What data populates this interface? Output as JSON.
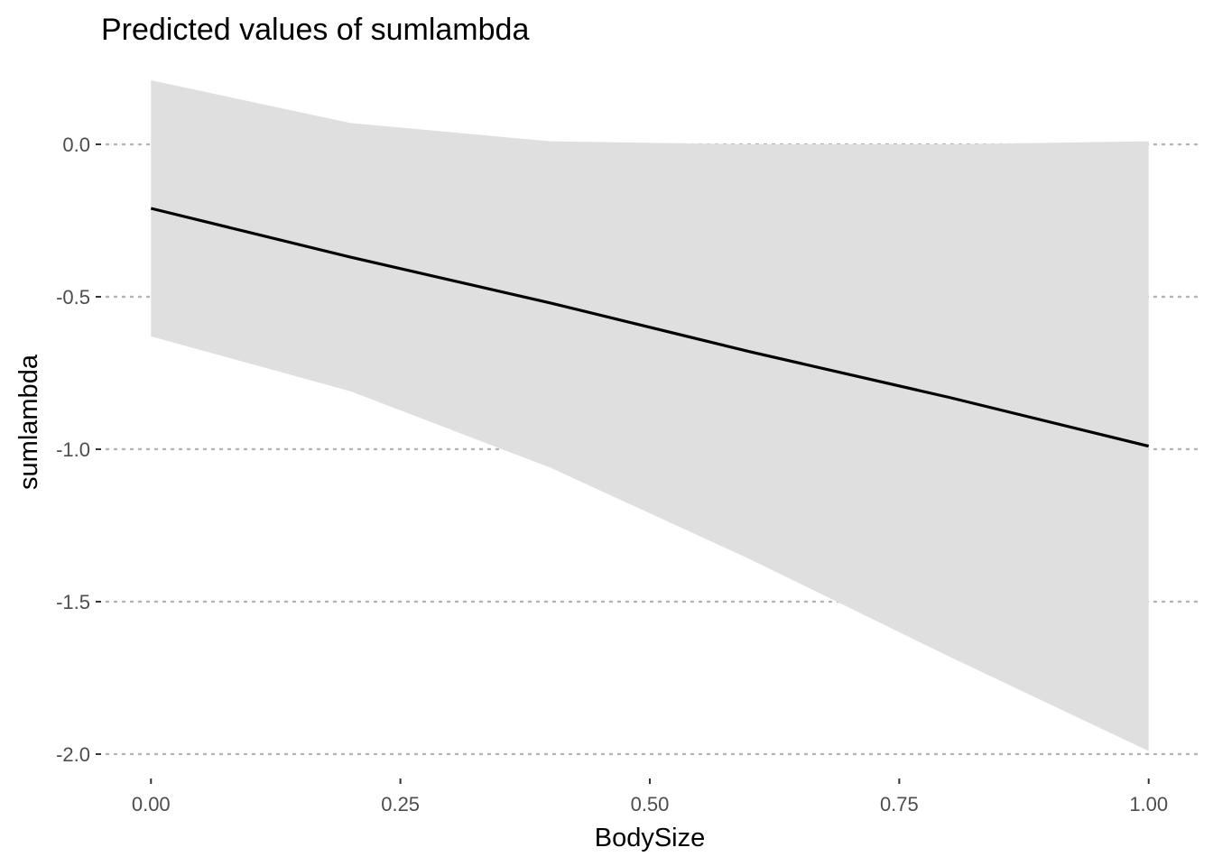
{
  "chart_data": {
    "type": "line",
    "title": "Predicted values of sumlambda",
    "xlabel": "BodySize",
    "ylabel": "sumlambda",
    "x": [
      0,
      0.2,
      0.4,
      0.6,
      0.8,
      1.0
    ],
    "series": [
      {
        "values": [
          -0.21,
          -0.37,
          -0.52,
          -0.68,
          -0.83,
          -0.99
        ],
        "ci_lower": [
          -0.63,
          -0.81,
          -1.06,
          -1.36,
          -1.68,
          -1.99
        ],
        "ci_upper": [
          0.21,
          0.07,
          0.01,
          0.0,
          0.0,
          0.01
        ]
      }
    ],
    "xlim": [
      -0.05,
      1.05
    ],
    "ylim": [
      -2.08,
      0.29
    ],
    "x_ticks": [
      0,
      0.25,
      0.5,
      0.75,
      1.0
    ],
    "x_tick_labels": [
      "0.00",
      "0.25",
      "0.50",
      "0.75",
      "1.00"
    ],
    "y_ticks": [
      0,
      -0.5,
      -1.0,
      -1.5,
      -2.0
    ],
    "y_tick_labels": [
      "0.0",
      "-0.5",
      "-1.0",
      "-1.5",
      "-2.0"
    ],
    "grid": "horizontal-dotted",
    "legend": "none",
    "colors": {
      "line": "#000000",
      "ribbon": "#dfdfdf",
      "grid": "#b3b3b3",
      "tick_text": "#4d4d4d"
    }
  }
}
